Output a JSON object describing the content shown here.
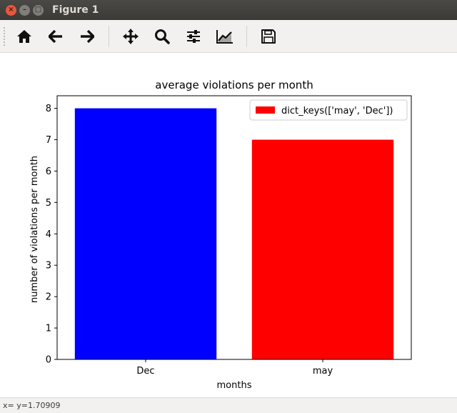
{
  "window": {
    "title": "Figure 1"
  },
  "toolbar": {
    "buttons": [
      {
        "icon": "home-icon"
      },
      {
        "icon": "back-arrow-icon"
      },
      {
        "icon": "forward-arrow-icon"
      },
      {
        "icon": "pan-move-icon"
      },
      {
        "icon": "zoom-magnifier-icon"
      },
      {
        "icon": "configure-subplots-icon"
      },
      {
        "icon": "edit-axes-icon"
      },
      {
        "icon": "save-floppy-icon"
      }
    ]
  },
  "status": {
    "text": "x= y=1.70909"
  },
  "chart_data": {
    "type": "bar",
    "title": "average violations per month",
    "xlabel": "months",
    "ylabel": "number of violations per month",
    "categories": [
      "Dec",
      "may"
    ],
    "values": [
      8,
      7
    ],
    "colors": [
      "#0000ff",
      "#ff0000"
    ],
    "ylim": [
      0,
      8.4
    ],
    "yticks": [
      0,
      1,
      2,
      3,
      4,
      5,
      6,
      7,
      8
    ],
    "grid": false,
    "legend": {
      "position": "top-right",
      "label": "dict_keys(['may', 'Dec'])",
      "color": "#ff0000"
    }
  }
}
